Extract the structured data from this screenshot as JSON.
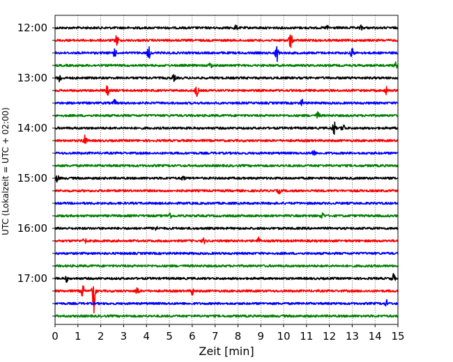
{
  "chart_data": {
    "type": "line",
    "title": "",
    "xlabel": "Zeit  [min]",
    "ylabel": "UTC (Lokalzeit = UTC + 02:00)",
    "xlim": [
      0,
      15
    ],
    "x_ticks": [
      0,
      1,
      2,
      3,
      4,
      5,
      6,
      7,
      8,
      9,
      10,
      11,
      12,
      13,
      14,
      15
    ],
    "x_tick_labels": [
      "0",
      "1",
      "2",
      "3",
      "4",
      "5",
      "6",
      "7",
      "8",
      "9",
      "10",
      "11",
      "12",
      "13",
      "14",
      "15"
    ],
    "y_tick_labels": [
      "12:00",
      "13:00",
      "14:00",
      "15:00",
      "16:00",
      "17:00"
    ],
    "y_inverted": true,
    "grid": {
      "x": true,
      "style": "dotted",
      "color": "#000000"
    },
    "trace_interval_minutes": 15,
    "trace_colors_cycle": [
      "#000000",
      "#ff0000",
      "#0000ff",
      "#008000"
    ],
    "series": [
      {
        "start": "12:00",
        "color": "#000000",
        "events": [
          [
            7.9,
            0.25
          ],
          [
            11.9,
            0.2
          ],
          [
            13.4,
            0.2
          ]
        ]
      },
      {
        "start": "12:15",
        "color": "#ff0000",
        "events": [
          [
            2.7,
            0.6
          ],
          [
            10.3,
            0.9
          ]
        ]
      },
      {
        "start": "12:30",
        "color": "#0000ff",
        "events": [
          [
            2.6,
            0.45
          ],
          [
            4.1,
            0.6
          ],
          [
            9.7,
            0.85
          ],
          [
            13.0,
            0.5
          ]
        ]
      },
      {
        "start": "12:45",
        "color": "#008000",
        "events": [
          [
            6.8,
            0.3
          ],
          [
            14.9,
            0.3
          ]
        ]
      },
      {
        "start": "13:00",
        "color": "#000000",
        "events": [
          [
            0.2,
            0.45
          ],
          [
            5.2,
            0.3
          ]
        ]
      },
      {
        "start": "13:15",
        "color": "#ff0000",
        "events": [
          [
            2.3,
            0.5
          ],
          [
            6.2,
            0.6
          ],
          [
            14.5,
            0.35
          ]
        ]
      },
      {
        "start": "13:30",
        "color": "#0000ff",
        "events": [
          [
            2.6,
            0.3
          ],
          [
            10.8,
            0.3
          ]
        ]
      },
      {
        "start": "13:45",
        "color": "#008000",
        "events": [
          [
            11.5,
            0.4
          ]
        ]
      },
      {
        "start": "14:00",
        "color": "#000000",
        "events": [
          [
            12.2,
            0.75
          ],
          [
            12.6,
            0.45
          ]
        ]
      },
      {
        "start": "14:15",
        "color": "#ff0000",
        "events": [
          [
            1.3,
            0.7
          ]
        ]
      },
      {
        "start": "14:30",
        "color": "#0000ff",
        "events": [
          [
            11.3,
            0.35
          ]
        ]
      },
      {
        "start": "14:45",
        "color": "#008000",
        "events": []
      },
      {
        "start": "15:00",
        "color": "#000000",
        "events": [
          [
            0.1,
            0.35
          ],
          [
            5.6,
            0.25
          ]
        ]
      },
      {
        "start": "15:15",
        "color": "#ff0000",
        "events": [
          [
            9.8,
            0.25
          ]
        ]
      },
      {
        "start": "15:30",
        "color": "#0000ff",
        "events": []
      },
      {
        "start": "15:45",
        "color": "#008000",
        "events": [
          [
            5.0,
            0.45
          ],
          [
            11.7,
            0.35
          ]
        ]
      },
      {
        "start": "16:00",
        "color": "#000000",
        "events": [
          [
            4.4,
            0.25
          ]
        ]
      },
      {
        "start": "16:15",
        "color": "#ff0000",
        "events": [
          [
            1.3,
            0.3
          ],
          [
            6.5,
            0.25
          ],
          [
            8.9,
            0.3
          ]
        ]
      },
      {
        "start": "16:30",
        "color": "#0000ff",
        "events": []
      },
      {
        "start": "16:45",
        "color": "#008000",
        "events": []
      },
      {
        "start": "17:00",
        "color": "#000000",
        "events": [
          [
            0.5,
            0.3
          ],
          [
            14.8,
            0.45
          ]
        ]
      },
      {
        "start": "17:15",
        "color": "#ff0000",
        "events": [
          [
            1.2,
            0.7
          ],
          [
            1.7,
            2.2
          ],
          [
            3.6,
            0.4
          ],
          [
            6.0,
            0.4
          ]
        ]
      },
      {
        "start": "17:30",
        "color": "#0000ff",
        "events": [
          [
            14.5,
            0.3
          ]
        ]
      },
      {
        "start": "17:45",
        "color": "#008000",
        "events": []
      }
    ]
  }
}
